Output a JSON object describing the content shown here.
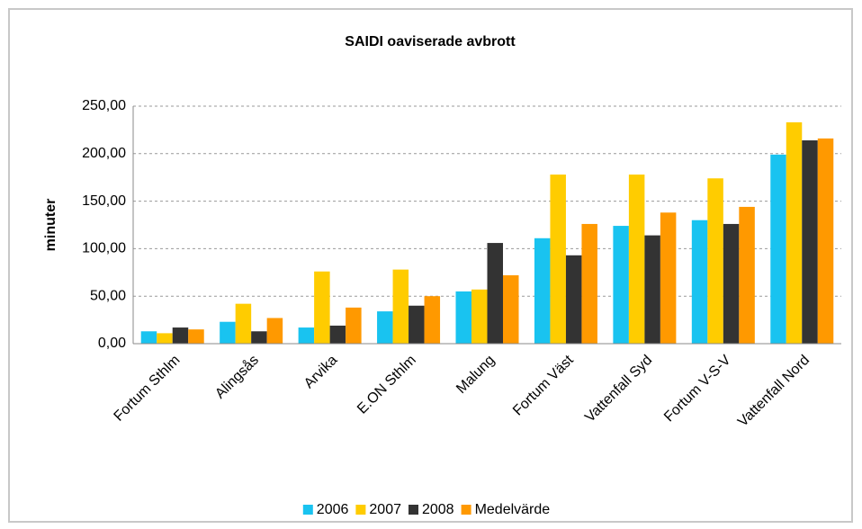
{
  "chart_data": {
    "type": "bar",
    "title": "SAIDI oaviserade avbrott",
    "y_label": "minuter",
    "categories": [
      "Fortum Sthlm",
      "Alingsås",
      "Arvika",
      "E.ON Sthlm",
      "Malung",
      "Fortum Väst",
      "Vattenfall Syd",
      "Fortum V-S-V",
      "Vattenfall Nord"
    ],
    "series": [
      {
        "name": "2006",
        "color": "#19c3f0",
        "values": [
          13,
          23,
          17,
          34,
          55,
          111,
          124,
          130,
          199
        ]
      },
      {
        "name": "2007",
        "color": "#ffcc00",
        "values": [
          11,
          42,
          76,
          78,
          57,
          178,
          178,
          174,
          233
        ]
      },
      {
        "name": "2008",
        "color": "#333333",
        "values": [
          17,
          13,
          19,
          40,
          106,
          93,
          114,
          126,
          214
        ]
      },
      {
        "name": "Medelvärde",
        "color": "#ff9900",
        "values": [
          15,
          27,
          38,
          50,
          72,
          126,
          138,
          144,
          216
        ]
      }
    ],
    "ylim": [
      0,
      250
    ],
    "yticks": [
      {
        "value": 0,
        "label": "0,00"
      },
      {
        "value": 50,
        "label": "50,00"
      },
      {
        "value": 100,
        "label": "100,00"
      },
      {
        "value": 150,
        "label": "150,00"
      },
      {
        "value": 200,
        "label": "200,00"
      },
      {
        "value": 250,
        "label": "250,00"
      }
    ],
    "grid": true,
    "legend": "bottom"
  }
}
